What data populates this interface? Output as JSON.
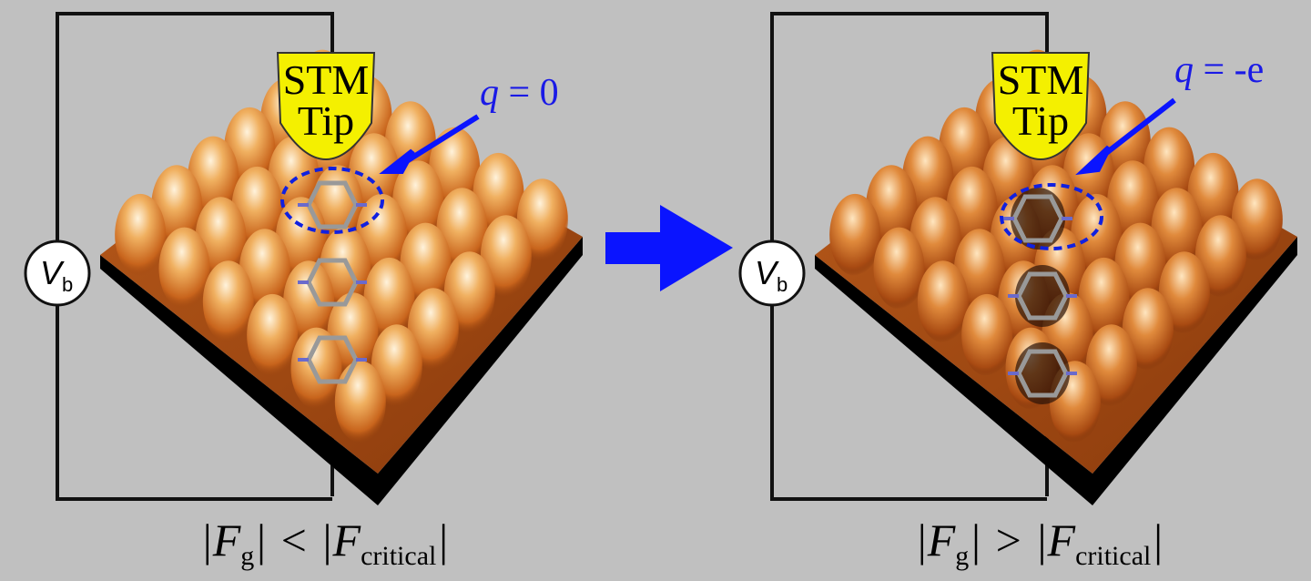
{
  "panels": [
    {
      "tip": [
        "STM",
        "Tip"
      ],
      "charge": [
        "q",
        " = 0"
      ],
      "bias": [
        "V",
        "b"
      ],
      "condition": [
        "|F",
        "g",
        "| < |F",
        "critical",
        "|"
      ]
    },
    {
      "tip": [
        "STM",
        "Tip"
      ],
      "charge": [
        "q",
        " = -e"
      ],
      "bias": [
        "V",
        "b"
      ],
      "condition": [
        "|F",
        "g",
        "| > |F",
        "critical",
        "|"
      ]
    }
  ]
}
